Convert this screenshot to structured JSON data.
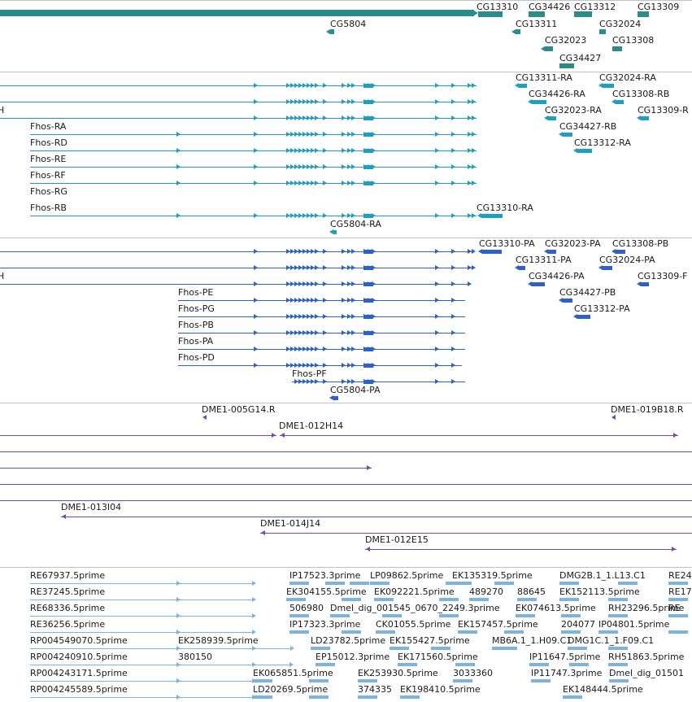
{
  "view": {
    "background": "#ffffff",
    "separator_color": "#bcc5cc"
  },
  "tracks": [
    {
      "id": "gene_span",
      "color": "#2a8c8c",
      "labels": [
        {
          "t": "CG13310"
        },
        {
          "t": "CG34426"
        },
        {
          "t": "CG13312"
        },
        {
          "t": "CG13309"
        },
        {
          "t": "CG5804"
        },
        {
          "t": "CG13311"
        },
        {
          "t": "CG32024"
        },
        {
          "t": "CG32023"
        },
        {
          "t": "CG13308"
        },
        {
          "t": "CG34427"
        }
      ]
    },
    {
      "id": "transcripts",
      "color": "#1e9fbf",
      "labels": [
        {
          "t": "CG13311-RA"
        },
        {
          "t": "CG32024-RA"
        },
        {
          "t": "H"
        },
        {
          "t": "CG34426-RA"
        },
        {
          "t": "CG13308-RB"
        },
        {
          "t": "CG32023-RA"
        },
        {
          "t": "CG13309-R"
        },
        {
          "t": "Fhos-RA"
        },
        {
          "t": "CG34427-RB"
        },
        {
          "t": "Fhos-RD"
        },
        {
          "t": "CG13312-RA"
        },
        {
          "t": "Fhos-RE"
        },
        {
          "t": "Fhos-RF"
        },
        {
          "t": "Fhos-RG"
        },
        {
          "t": "Fhos-RB"
        },
        {
          "t": "CG13310-RA"
        },
        {
          "t": "CG5804-RA"
        }
      ]
    },
    {
      "id": "proteins",
      "color": "#2e60c8",
      "labels": [
        {
          "t": "CG13310-PA"
        },
        {
          "t": "CG32023-PA"
        },
        {
          "t": "CG13308-PB"
        },
        {
          "t": "CG13311-PA"
        },
        {
          "t": "CG32024-PA"
        },
        {
          "t": "H"
        },
        {
          "t": "CG34426-PA"
        },
        {
          "t": "CG13309-F"
        },
        {
          "t": "Fhos-PE"
        },
        {
          "t": "CG34427-PB"
        },
        {
          "t": "Fhos-PG"
        },
        {
          "t": "CG13312-PA"
        },
        {
          "t": "Fhos-PB"
        },
        {
          "t": "Fhos-PA"
        },
        {
          "t": "Fhos-PD"
        },
        {
          "t": "Fhos-PF"
        },
        {
          "t": "CG5804-PA"
        }
      ]
    },
    {
      "id": "clones",
      "color": "#6a4fa8",
      "labels": [
        {
          "t": "DME1-005G14.R"
        },
        {
          "t": "DME1-019B18.R"
        },
        {
          "t": "DME1-012H14"
        },
        {
          "t": "DME1-013I04"
        },
        {
          "t": "DME1-014J14"
        },
        {
          "t": "DME1-012E15"
        }
      ]
    },
    {
      "id": "ests",
      "color": "#7ab4e0",
      "labels": [
        {
          "t": "RE67937.5prime"
        },
        {
          "t": "IP17523.3prime"
        },
        {
          "t": "LP09862.5prime"
        },
        {
          "t": "EK135319.5prime"
        },
        {
          "t": "DMG2B.1_1.L13.C1"
        },
        {
          "t": "RE24"
        },
        {
          "t": "RE37245.5prime"
        },
        {
          "t": "EK304155.5prime"
        },
        {
          "t": "EK092221.5prime"
        },
        {
          "t": "489270"
        },
        {
          "t": "88645"
        },
        {
          "t": "EK152113.5prime"
        },
        {
          "t": "RE17"
        },
        {
          "t": "RE68336.5prime"
        },
        {
          "t": "506980"
        },
        {
          "t": "Dmel_dig_001545_0670_2249.3prime"
        },
        {
          "t": "EK074613.5prime"
        },
        {
          "t": "RH23296.5prime"
        },
        {
          "t": "RE"
        },
        {
          "t": "RE36256.5prime"
        },
        {
          "t": "IP17323.3prime"
        },
        {
          "t": "CK01055.5prime"
        },
        {
          "t": "EK157457.5prime"
        },
        {
          "t": "204077"
        },
        {
          "t": "IP04801.5prime"
        },
        {
          "t": "RP004549070.5prime"
        },
        {
          "t": "EK258939.5prime"
        },
        {
          "t": "LD23782.5prime"
        },
        {
          "t": "EK155427.5prime"
        },
        {
          "t": "MB6A.1_1.H09.C1"
        },
        {
          "t": "DMG1C.1_1.F09.C1"
        },
        {
          "t": "RP004240910.5prime"
        },
        {
          "t": "380150"
        },
        {
          "t": "EP15012.3prime"
        },
        {
          "t": "EK171560.5prime"
        },
        {
          "t": "IP11647.5prime"
        },
        {
          "t": "RH51863.5prime"
        },
        {
          "t": "RP004243171.5prime"
        },
        {
          "t": "EK065851.5prime"
        },
        {
          "t": "EK253930.5prime"
        },
        {
          "t": "3033360"
        },
        {
          "t": "IP11747.3prime"
        },
        {
          "t": "Dmel_dig_01501"
        },
        {
          "t": "RP004245589.5prime"
        },
        {
          "t": "LD20269.5prime"
        },
        {
          "t": "374335"
        },
        {
          "t": "EK198410.5prime"
        },
        {
          "t": "EK148444.5prime"
        }
      ]
    }
  ]
}
